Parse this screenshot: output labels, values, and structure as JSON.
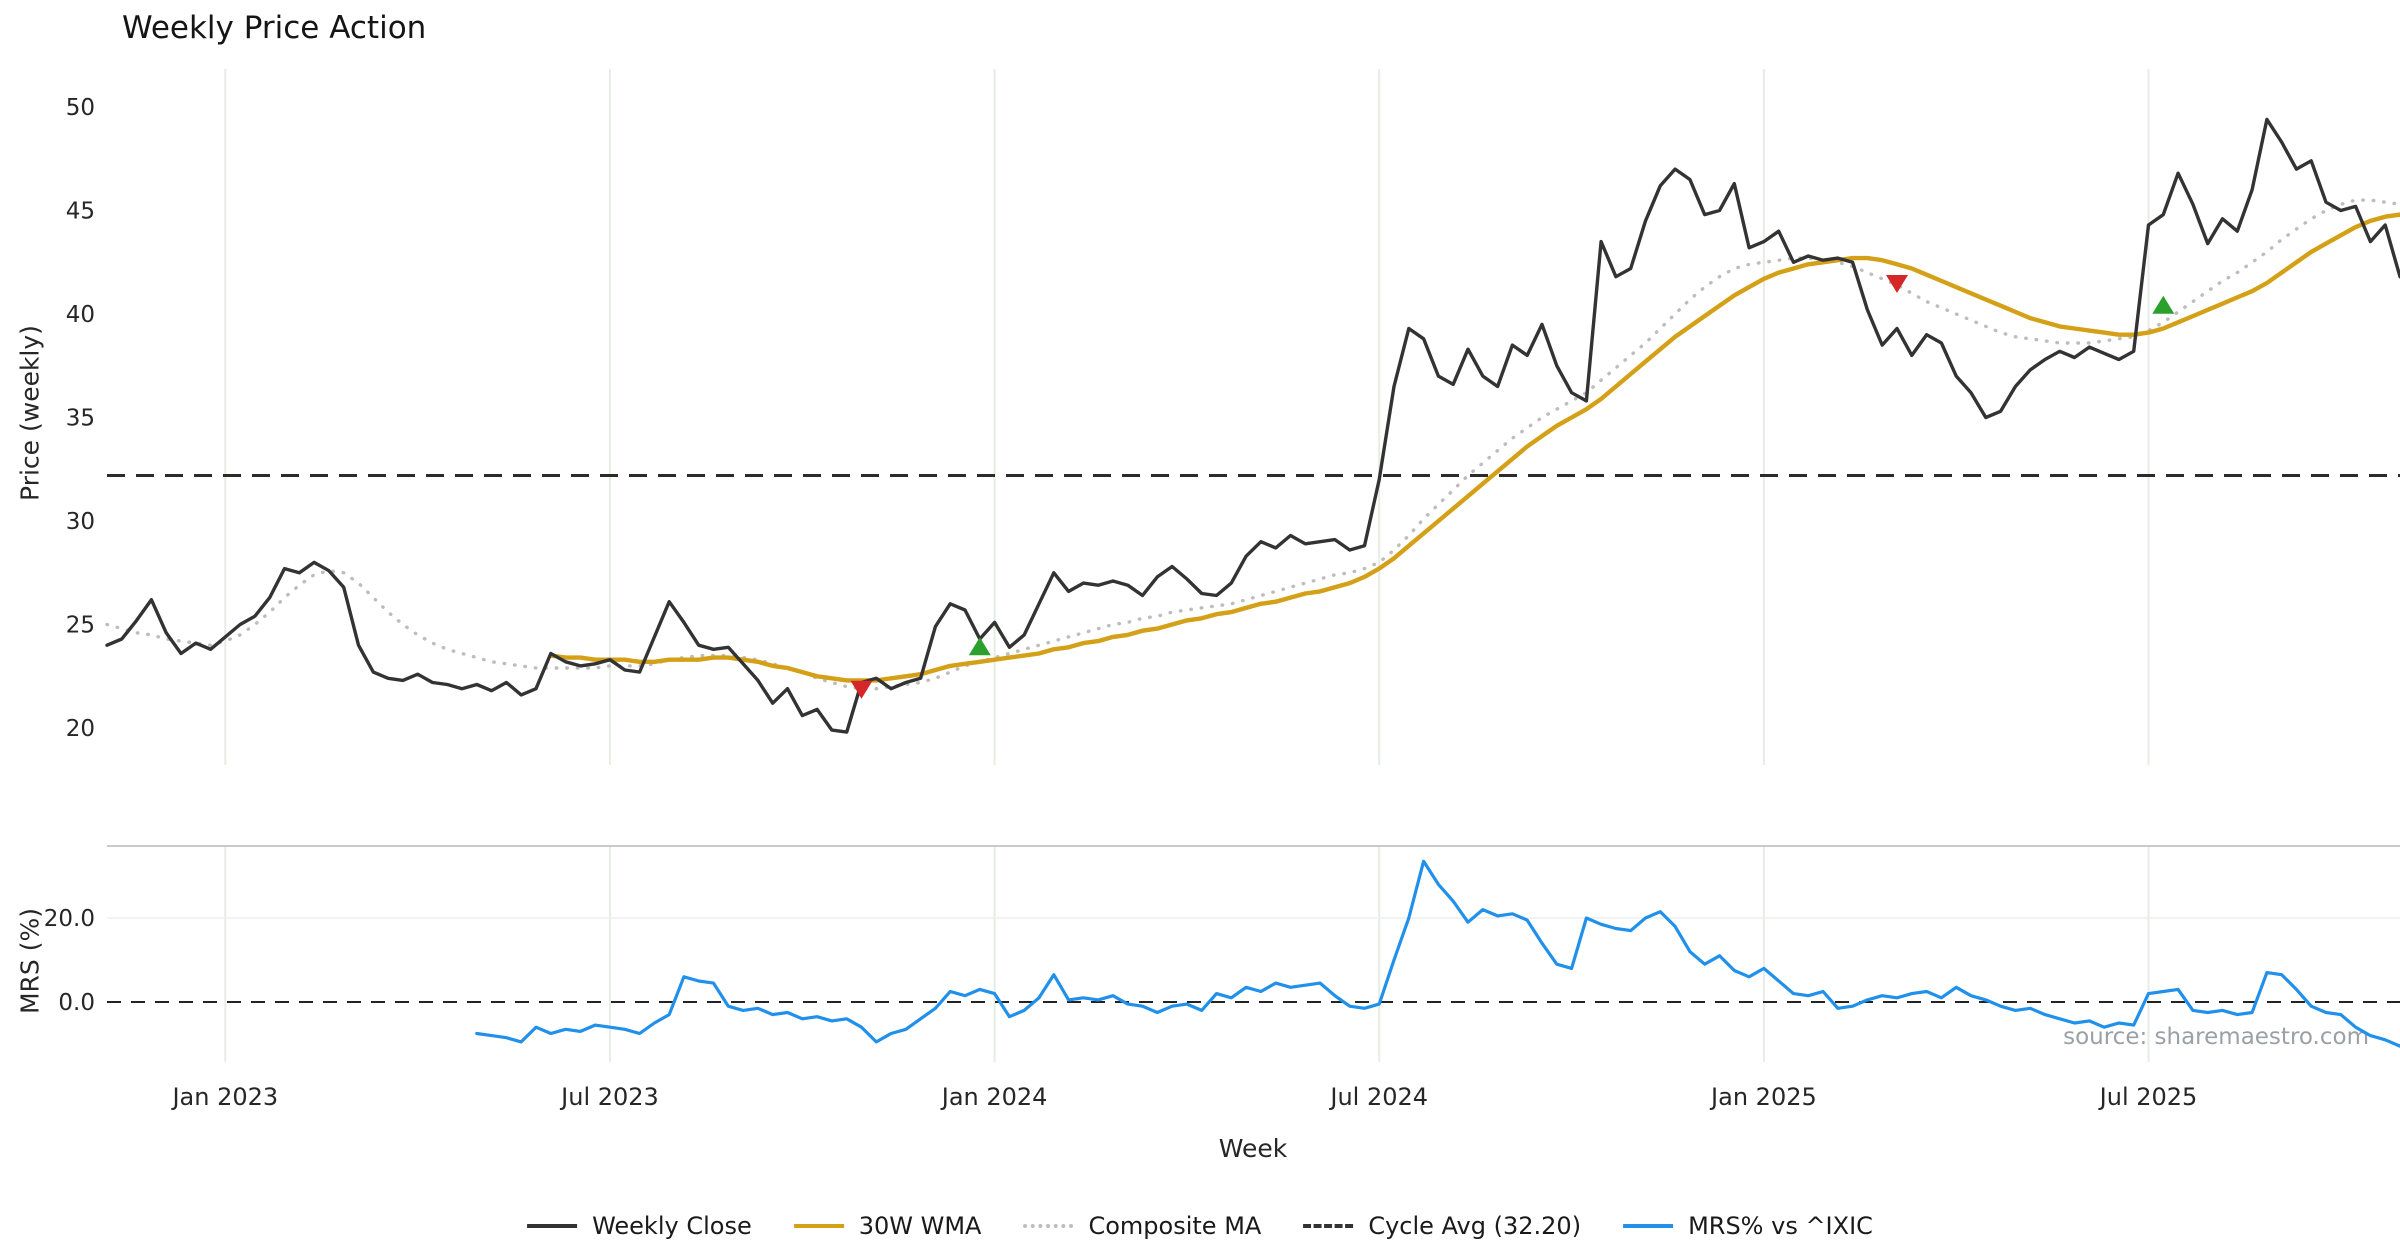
{
  "title": "Weekly Price Action",
  "watermark": "source: sharemaestro.com",
  "axes": {
    "price_ylabel": "Price (weekly)",
    "mrs_ylabel": "MRS (%)",
    "xlabel": "Week",
    "price_ticks": [
      20,
      25,
      30,
      35,
      40,
      45,
      50
    ],
    "mrs_ticks": [
      {
        "value": 20.0,
        "label": "20.0"
      },
      {
        "value": 0.0,
        "label": "0.0"
      }
    ],
    "x_ticks": [
      {
        "week": 8,
        "label": "Jan 2023"
      },
      {
        "week": 34,
        "label": "Jul 2023"
      },
      {
        "week": 60,
        "label": "Jan 2024"
      },
      {
        "week": 86,
        "label": "Jul 2024"
      },
      {
        "week": 112,
        "label": "Jan 2025"
      },
      {
        "week": 138,
        "label": "Jul 2025"
      }
    ]
  },
  "legend": {
    "items": [
      {
        "label": "Weekly Close",
        "color": "#333333",
        "style": "solid"
      },
      {
        "label": "30W WMA",
        "color": "#d4a017",
        "style": "solid"
      },
      {
        "label": "Composite MA",
        "color": "#bdbdbd",
        "style": "dotted"
      },
      {
        "label": "Cycle Avg (32.20)",
        "color": "#333333",
        "style": "dashed"
      },
      {
        "label": "MRS% vs ^IXIC",
        "color": "#2090ea",
        "style": "solid"
      }
    ]
  },
  "chart_data": [
    {
      "type": "line",
      "title": "Weekly Price Action",
      "xlabel": "Week",
      "ylabel": "Price (weekly)",
      "ylim": [
        18.2,
        51.8
      ],
      "grid": "vertical-only",
      "x_unit": "week_index",
      "x_range": [
        0,
        155
      ],
      "cycle_avg": 32.2,
      "series": [
        {
          "name": "Weekly Close",
          "color": "#333333",
          "style": "solid",
          "start_week": 0,
          "values": [
            24.0,
            24.3,
            25.2,
            26.2,
            24.6,
            23.6,
            24.1,
            23.8,
            24.4,
            25.0,
            25.4,
            26.3,
            27.7,
            27.5,
            28.0,
            27.6,
            26.8,
            24.0,
            22.7,
            22.4,
            22.3,
            22.6,
            22.2,
            22.1,
            21.9,
            22.1,
            21.8,
            22.2,
            21.6,
            21.9,
            23.6,
            23.2,
            23.0,
            23.1,
            23.3,
            22.8,
            22.7,
            24.4,
            26.1,
            25.1,
            24.0,
            23.8,
            23.9,
            23.1,
            22.3,
            21.2,
            21.9,
            20.6,
            20.9,
            19.9,
            19.8,
            22.2,
            22.4,
            21.9,
            22.2,
            22.4,
            24.9,
            26.0,
            25.7,
            24.3,
            25.1,
            23.9,
            24.5,
            26.0,
            27.5,
            26.6,
            27.0,
            26.9,
            27.1,
            26.9,
            26.4,
            27.3,
            27.8,
            27.2,
            26.5,
            26.4,
            27.0,
            28.3,
            29.0,
            28.7,
            29.3,
            28.9,
            29.0,
            29.1,
            28.6,
            28.8,
            32.0,
            36.5,
            39.3,
            38.8,
            37.0,
            36.6,
            38.3,
            37.0,
            36.5,
            38.5,
            38.0,
            39.5,
            37.5,
            36.2,
            35.8,
            43.5,
            41.8,
            42.2,
            44.5,
            46.2,
            47.0,
            46.5,
            44.8,
            45.0,
            46.3,
            43.2,
            43.5,
            44.0,
            42.5,
            42.8,
            42.6,
            42.7,
            42.5,
            40.2,
            38.5,
            39.3,
            38.0,
            39.0,
            38.6,
            37.0,
            36.2,
            35.0,
            35.3,
            36.5,
            37.3,
            37.8,
            38.2,
            37.9,
            38.4,
            38.1,
            37.8,
            38.2,
            44.3,
            44.8,
            46.8,
            45.3,
            43.4,
            44.6,
            44.0,
            46.0,
            49.4,
            48.3,
            47.0,
            47.4,
            45.4,
            45.0,
            45.2,
            43.5,
            44.3,
            41.8
          ]
        },
        {
          "name": "30W WMA",
          "color": "#d4a017",
          "style": "solid",
          "start_week": 30,
          "values": [
            23.5,
            23.4,
            23.4,
            23.3,
            23.3,
            23.3,
            23.2,
            23.2,
            23.3,
            23.3,
            23.3,
            23.4,
            23.4,
            23.3,
            23.2,
            23.0,
            22.9,
            22.7,
            22.5,
            22.4,
            22.3,
            22.3,
            22.3,
            22.4,
            22.5,
            22.6,
            22.8,
            23.0,
            23.1,
            23.2,
            23.3,
            23.4,
            23.5,
            23.6,
            23.8,
            23.9,
            24.1,
            24.2,
            24.4,
            24.5,
            24.7,
            24.8,
            25.0,
            25.2,
            25.3,
            25.5,
            25.6,
            25.8,
            26.0,
            26.1,
            26.3,
            26.5,
            26.6,
            26.8,
            27.0,
            27.3,
            27.7,
            28.2,
            28.8,
            29.4,
            30.0,
            30.6,
            31.2,
            31.8,
            32.4,
            33.0,
            33.6,
            34.1,
            34.6,
            35.0,
            35.4,
            35.9,
            36.5,
            37.1,
            37.7,
            38.3,
            38.9,
            39.4,
            39.9,
            40.4,
            40.9,
            41.3,
            41.7,
            42.0,
            42.2,
            42.4,
            42.5,
            42.6,
            42.7,
            42.7,
            42.6,
            42.4,
            42.2,
            41.9,
            41.6,
            41.3,
            41.0,
            40.7,
            40.4,
            40.1,
            39.8,
            39.6,
            39.4,
            39.3,
            39.2,
            39.1,
            39.0,
            39.0,
            39.1,
            39.3,
            39.6,
            39.9,
            40.2,
            40.5,
            40.8,
            41.1,
            41.5,
            42.0,
            42.5,
            43.0,
            43.4,
            43.8,
            44.2,
            44.5,
            44.7,
            44.8
          ]
        },
        {
          "name": "Composite MA",
          "color": "#bdbdbd",
          "style": "dotted",
          "start_week": 0,
          "values": [
            25.0,
            24.8,
            24.6,
            24.5,
            24.3,
            24.2,
            24.1,
            24.0,
            24.2,
            24.5,
            25.0,
            25.6,
            26.3,
            26.9,
            27.4,
            27.6,
            27.5,
            27.0,
            26.3,
            25.6,
            25.0,
            24.5,
            24.1,
            23.8,
            23.6,
            23.4,
            23.2,
            23.1,
            23.0,
            22.9,
            22.9,
            22.9,
            22.9,
            22.9,
            23.0,
            23.0,
            23.0,
            23.1,
            23.3,
            23.4,
            23.5,
            23.5,
            23.5,
            23.4,
            23.3,
            23.1,
            22.9,
            22.7,
            22.4,
            22.2,
            22.0,
            21.9,
            21.9,
            22.0,
            22.1,
            22.2,
            22.4,
            22.7,
            23.0,
            23.2,
            23.4,
            23.6,
            23.8,
            24.0,
            24.2,
            24.4,
            24.6,
            24.8,
            25.0,
            25.1,
            25.3,
            25.4,
            25.6,
            25.7,
            25.8,
            25.9,
            26.0,
            26.2,
            26.4,
            26.6,
            26.8,
            27.0,
            27.2,
            27.4,
            27.5,
            27.7,
            28.0,
            28.6,
            29.3,
            30.1,
            30.8,
            31.5,
            32.2,
            32.8,
            33.4,
            34.0,
            34.5,
            35.0,
            35.4,
            35.8,
            36.2,
            36.8,
            37.4,
            38.0,
            38.6,
            39.3,
            40.0,
            40.7,
            41.3,
            41.8,
            42.2,
            42.4,
            42.5,
            42.6,
            42.7,
            42.7,
            42.6,
            42.5,
            42.3,
            42.0,
            41.7,
            41.4,
            41.0,
            40.6,
            40.3,
            40.0,
            39.7,
            39.4,
            39.1,
            38.9,
            38.8,
            38.7,
            38.6,
            38.6,
            38.6,
            38.7,
            38.8,
            38.9,
            39.2,
            39.6,
            40.1,
            40.6,
            41.1,
            41.6,
            42.0,
            42.5,
            43.0,
            43.6,
            44.1,
            44.6,
            45.0,
            45.3,
            45.5,
            45.5,
            45.4,
            45.3
          ]
        }
      ],
      "markers": {
        "sell_color": "#d62728",
        "buy_color": "#2ca02c",
        "sell": [
          {
            "week": 51,
            "price": 21.9
          },
          {
            "week": 121,
            "price": 41.5
          }
        ],
        "buy": [
          {
            "week": 59,
            "price": 23.9
          },
          {
            "week": 139,
            "price": 40.4
          }
        ]
      }
    },
    {
      "type": "line",
      "ylabel": "MRS (%)",
      "ylim": [
        -15,
        37
      ],
      "zero_line": 0,
      "x_unit": "week_index",
      "series": [
        {
          "name": "MRS% vs ^IXIC",
          "color": "#2090ea",
          "style": "solid",
          "start_week": 25,
          "values": [
            -7.5,
            -8.0,
            -8.5,
            -9.5,
            -6.0,
            -7.5,
            -6.5,
            -7.0,
            -5.5,
            -6.0,
            -6.5,
            -7.5,
            -5.0,
            -3.0,
            6.0,
            5.0,
            4.5,
            -1.0,
            -2.0,
            -1.5,
            -3.0,
            -2.5,
            -4.0,
            -3.5,
            -4.5,
            -4.0,
            -6.0,
            -9.5,
            -7.5,
            -6.5,
            -4.0,
            -1.5,
            2.5,
            1.5,
            3.0,
            2.0,
            -3.5,
            -2.0,
            1.0,
            6.5,
            0.5,
            1.0,
            0.5,
            1.5,
            -0.5,
            -1.0,
            -2.5,
            -1.0,
            -0.5,
            -2.0,
            2.0,
            1.0,
            3.5,
            2.5,
            4.5,
            3.5,
            4.0,
            4.5,
            1.5,
            -1.0,
            -1.5,
            -0.5,
            10.0,
            20.0,
            33.5,
            28.0,
            24.0,
            19.0,
            22.0,
            20.5,
            21.0,
            19.5,
            14.0,
            9.0,
            8.0,
            20.0,
            18.5,
            17.5,
            17.0,
            20.0,
            21.5,
            18.0,
            12.0,
            9.0,
            11.0,
            7.5,
            6.0,
            8.0,
            5.0,
            2.0,
            1.5,
            2.5,
            -1.5,
            -1.0,
            0.5,
            1.5,
            1.0,
            2.0,
            2.5,
            1.0,
            3.5,
            1.5,
            0.5,
            -1.0,
            -2.0,
            -1.5,
            -3.0,
            -4.0,
            -5.0,
            -4.5,
            -6.0,
            -5.0,
            -5.5,
            2.0,
            2.5,
            3.0,
            -2.0,
            -2.5,
            -2.0,
            -3.0,
            -2.5,
            7.0,
            6.5,
            3.0,
            -1.0,
            -2.5,
            -3.0,
            -6.0,
            -8.0,
            -9.0,
            -10.5
          ]
        }
      ]
    }
  ]
}
